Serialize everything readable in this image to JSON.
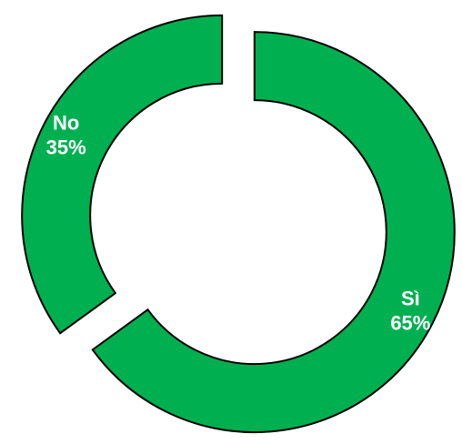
{
  "chart_data": {
    "type": "pie",
    "donut": true,
    "categories": [
      "Sì",
      "No"
    ],
    "values": [
      65,
      35
    ],
    "value_labels": [
      "65%",
      "35%"
    ],
    "color": "#00b050"
  }
}
